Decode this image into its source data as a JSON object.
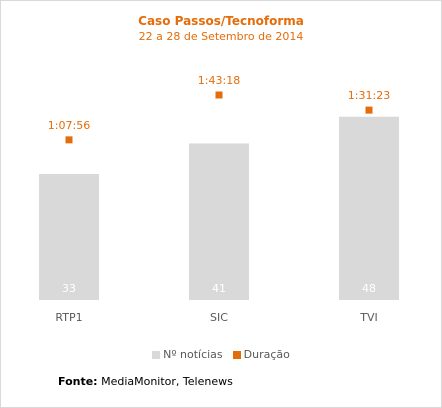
{
  "colors": {
    "accent": "#e46c0a",
    "bar": "#d9d9d9",
    "bar_label": "#ffffff",
    "axis_text": "#595959"
  },
  "chart_data": {
    "type": "bar",
    "title": "Caso Passos/Tecnoforma",
    "subtitle": "22 a 28 de Setembro de 2014",
    "categories": [
      "RTP1",
      "SIC",
      "TVI"
    ],
    "series": [
      {
        "name": "Nº notícias",
        "type": "bar",
        "values": [
          33,
          41,
          48
        ],
        "data_labels": [
          "33",
          "41",
          "48"
        ]
      },
      {
        "name": "Duração",
        "type": "scatter",
        "values_seconds": [
          4076,
          6198,
          5483
        ],
        "data_labels": [
          "1:07:56",
          "1:43:18",
          "1:31:23"
        ]
      }
    ],
    "legend_position": "bottom",
    "grid": false
  },
  "source": {
    "label": "Fonte:",
    "text": "MediaMonitor, Telenews"
  }
}
